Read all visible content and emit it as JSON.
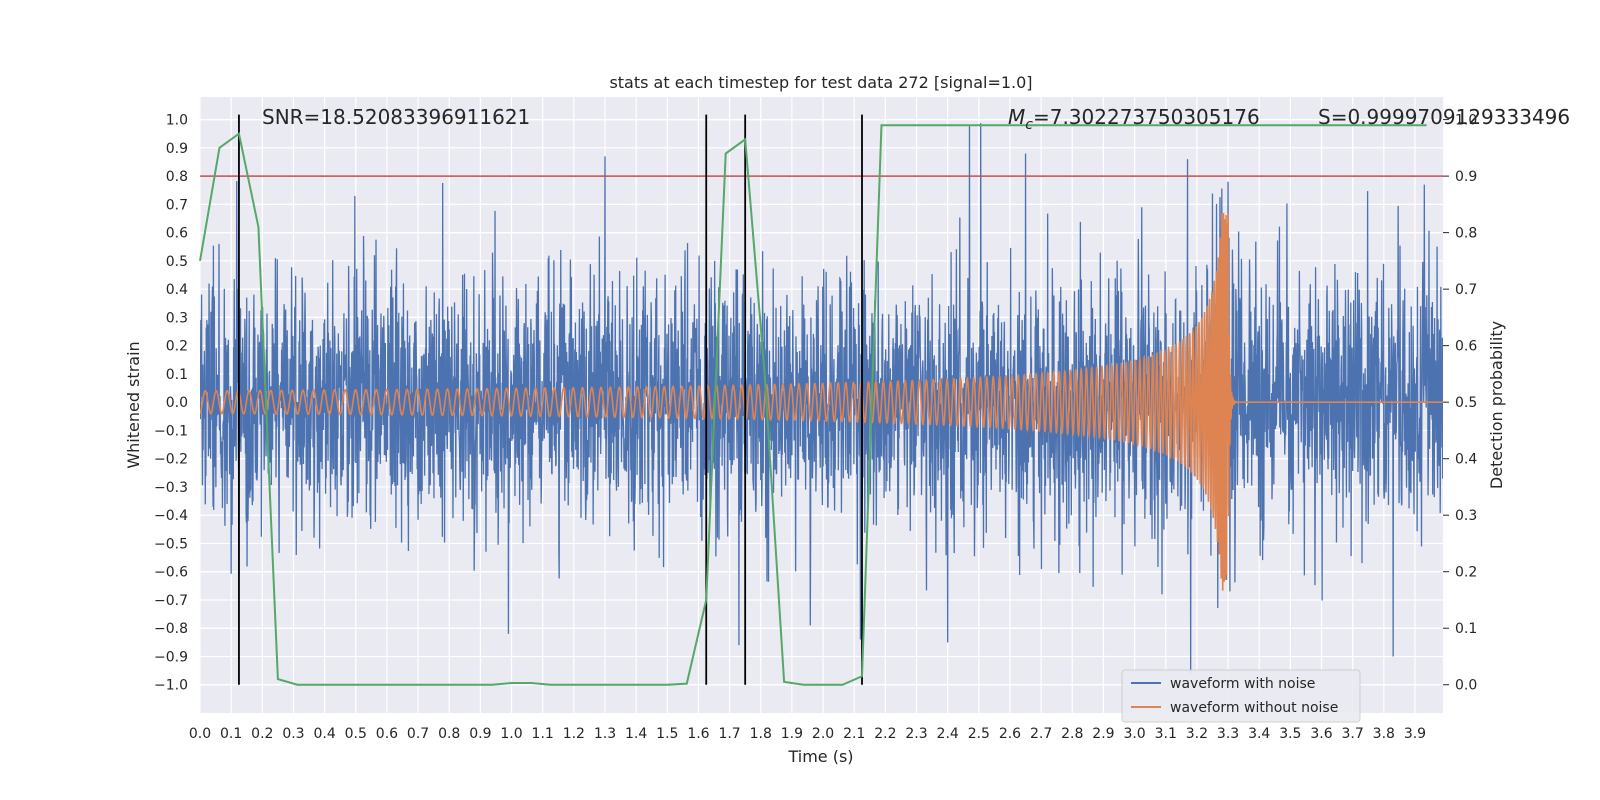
{
  "chart_data": {
    "type": "line",
    "title": "stats at each timestep for test data 272 [signal=1.0]",
    "xlabel": "Time (s)",
    "ylabel": "Whitened strain",
    "y2label": "Detection probability",
    "xlim": [
      0.0,
      3.99
    ],
    "ylim": [
      -1.1,
      1.08
    ],
    "y2lim": [
      -0.05,
      1.04
    ],
    "x_ticks": [
      0.0,
      0.1,
      0.2,
      0.3,
      0.4,
      0.5,
      0.6,
      0.7,
      0.8,
      0.9,
      1.0,
      1.1,
      1.2,
      1.3,
      1.4,
      1.5,
      1.6,
      1.7,
      1.8,
      1.9,
      2.0,
      2.1,
      2.2,
      2.3,
      2.4,
      2.5,
      2.6,
      2.7,
      2.8,
      2.9,
      3.0,
      3.1,
      3.2,
      3.3,
      3.4,
      3.5,
      3.6,
      3.7,
      3.8,
      3.9
    ],
    "y_ticks": [
      -1.0,
      -0.9,
      -0.8,
      -0.7,
      -0.6,
      -0.5,
      -0.4,
      -0.3,
      -0.2,
      -0.1,
      0.0,
      0.1,
      0.2,
      0.3,
      0.4,
      0.5,
      0.6,
      0.7,
      0.8,
      0.9,
      1.0
    ],
    "y2_ticks": [
      0.0,
      0.1,
      0.2,
      0.3,
      0.4,
      0.5,
      0.6,
      0.7,
      0.8,
      0.9,
      1.0
    ],
    "grid": true,
    "annotations": [
      {
        "text": "SNR=18.52083396911621",
        "x": 0.2,
        "y": 1.03
      },
      {
        "text_prefix": "M",
        "text_subscript": "c",
        "text_suffix": "=7.302273750305176",
        "x": 2.6,
        "y": 1.03
      },
      {
        "text": "S=0.9999709129333496",
        "x": 3.01,
        "y": 1.03
      }
    ],
    "threshold": {
      "axis": "y2",
      "value": 0.9,
      "color": "#c44e52"
    },
    "vlines": [
      0.125,
      1.625,
      1.75,
      2.125
    ],
    "series": [
      {
        "name": "waveform with noise",
        "color": "#4c72b0",
        "axis": "y",
        "kind": "noisy-whitened-strain",
        "n_samples": 4000,
        "sample_rate": 1000,
        "amplitude_scale": 0.22,
        "seed": 272,
        "peaks": [
          {
            "x": 1.3,
            "y": 0.87
          },
          {
            "x": 2.47,
            "y": 0.98
          },
          {
            "x": 2.65,
            "y": 0.88
          },
          {
            "x": 3.17,
            "y": 0.86
          },
          {
            "x": 3.3,
            "y": 0.78
          },
          {
            "x": 3.93,
            "y": 0.77
          },
          {
            "x": 0.99,
            "y": -0.82
          },
          {
            "x": 3.18,
            "y": -0.96
          },
          {
            "x": 3.83,
            "y": -0.9
          },
          {
            "x": 1.73,
            "y": -0.86
          },
          {
            "x": 2.12,
            "y": -0.84
          },
          {
            "x": 2.4,
            "y": -0.85
          }
        ]
      },
      {
        "name": "waveform without noise",
        "color": "#dd8452",
        "axis": "y",
        "kind": "chirp",
        "t_merger": 3.3,
        "merger_amplitude": 0.67,
        "amplitude_start": 0.04,
        "freq_start": 20,
        "freq_end": 250
      },
      {
        "name": "Detection probability",
        "color": "#55a868",
        "axis": "y2",
        "x": [
          0.0,
          0.0625,
          0.125,
          0.1875,
          0.25,
          0.3125,
          0.375,
          0.4375,
          0.5,
          0.5625,
          0.625,
          0.6875,
          0.75,
          0.8125,
          0.875,
          0.9375,
          1.0,
          1.0625,
          1.125,
          1.1875,
          1.25,
          1.3125,
          1.375,
          1.4375,
          1.5,
          1.5625,
          1.625,
          1.6875,
          1.75,
          1.8125,
          1.875,
          1.9375,
          2.0,
          2.0625,
          2.125,
          2.1875,
          2.25,
          2.3125,
          2.375,
          2.4375,
          2.5,
          2.5625,
          2.625,
          2.6875,
          2.75,
          2.8125,
          2.875,
          2.9375,
          3.0,
          3.0625,
          3.125,
          3.1875,
          3.25,
          3.3125,
          3.375,
          3.4375,
          3.5,
          3.5625,
          3.625,
          3.6875,
          3.75,
          3.8125,
          3.875,
          3.9375
        ],
        "y": [
          0.75,
          0.95,
          0.975,
          0.81,
          0.01,
          0.0,
          0.0,
          0.0,
          0.0,
          0.0,
          0.0,
          0.0,
          0.0,
          0.0,
          0.0,
          0.0,
          0.003,
          0.003,
          0.0,
          0.0,
          0.0,
          0.0,
          0.0,
          0.0,
          0.0,
          0.002,
          0.15,
          0.94,
          0.965,
          0.55,
          0.005,
          0.0,
          0.0,
          0.0,
          0.015,
          0.99,
          0.99,
          0.99,
          0.99,
          0.99,
          0.99,
          0.99,
          0.99,
          0.99,
          0.99,
          0.99,
          0.99,
          0.99,
          0.99,
          0.99,
          0.99,
          0.99,
          0.99,
          0.99,
          0.99,
          0.99,
          0.99,
          0.99,
          0.99,
          0.99,
          0.99,
          0.99,
          0.99,
          0.99
        ]
      }
    ],
    "legend": {
      "placement": "lower-right",
      "entries": [
        "waveform with noise",
        "waveform without noise"
      ]
    }
  }
}
